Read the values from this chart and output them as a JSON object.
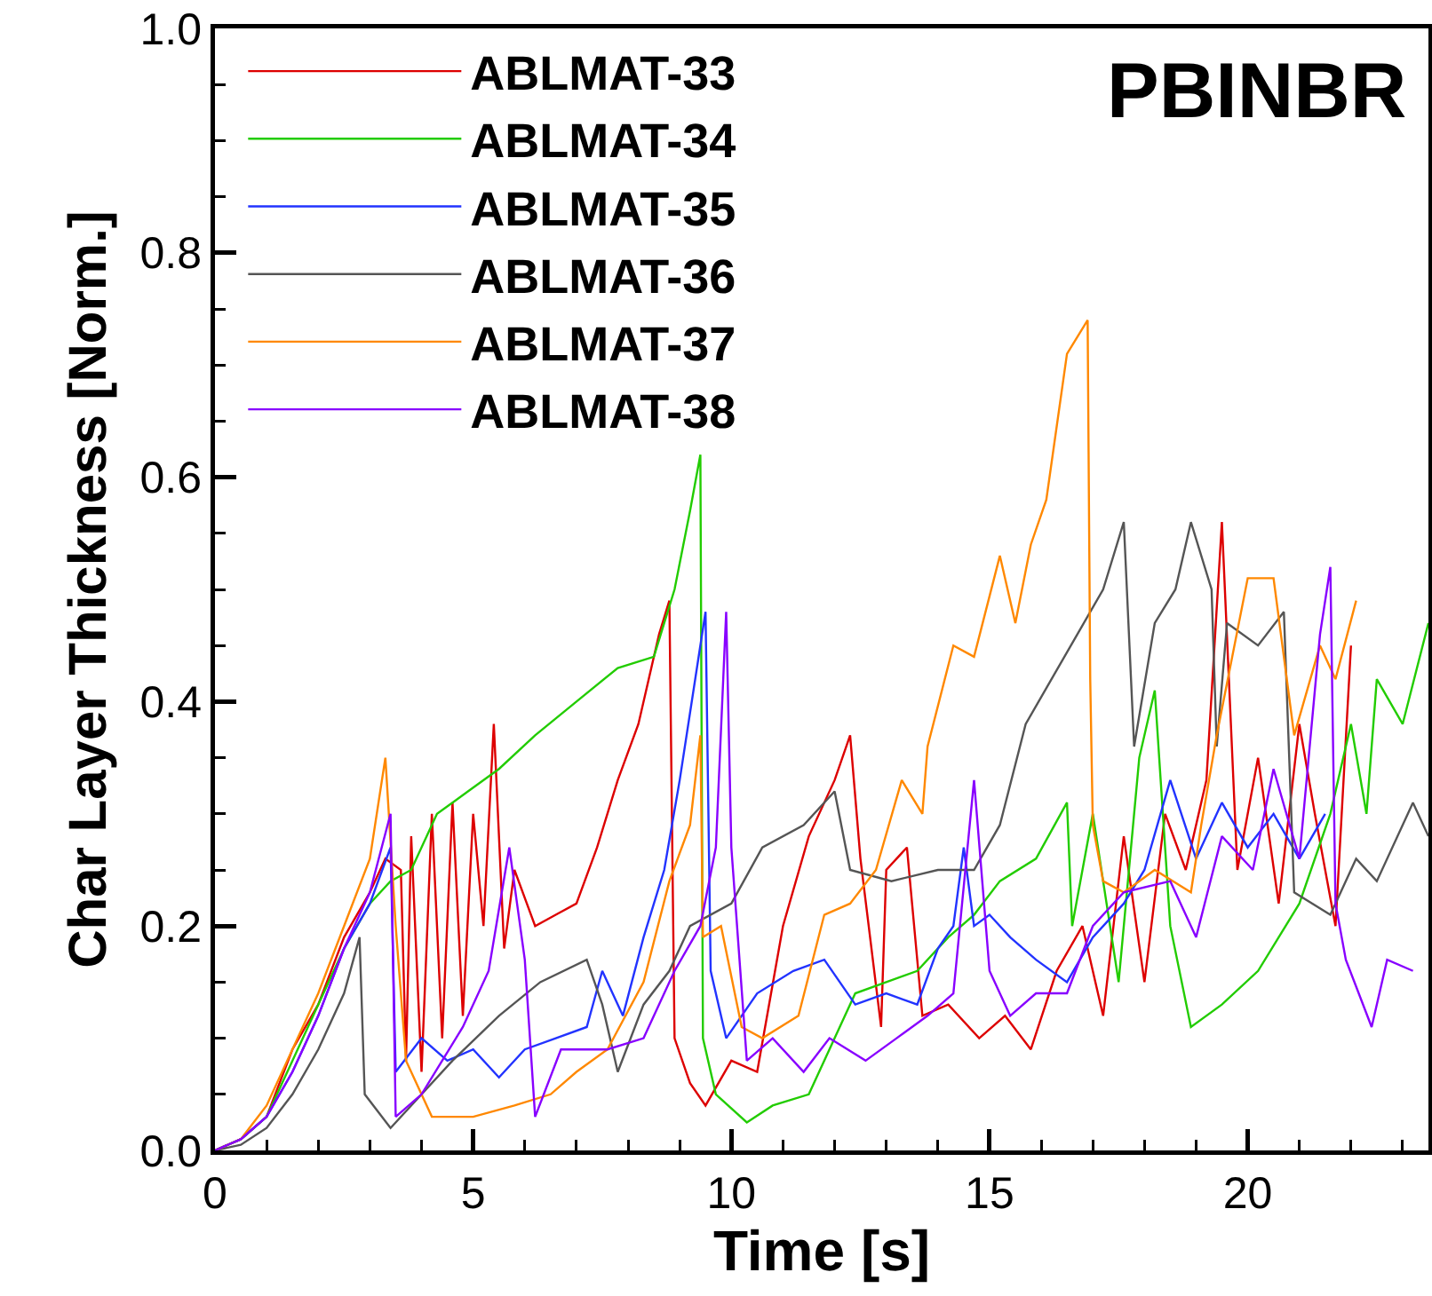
{
  "chart_data": {
    "type": "line",
    "xlabel": "Time [s]",
    "ylabel": "Char Layer Thickness [Norm.]",
    "annotations": [
      "PBINBR"
    ],
    "xlim": [
      0,
      23.5
    ],
    "xticks": [
      0,
      5,
      10,
      15,
      20
    ],
    "ylim": [
      0,
      1
    ],
    "yticks": [
      {
        "value": 0,
        "label": "0.0"
      },
      0.2,
      0.4,
      0.6,
      0.8,
      {
        "value": 1,
        "label": "1.0"
      }
    ],
    "grid": false,
    "legend": "top left",
    "series": [
      {
        "name": "ABLMAT-33",
        "color": "#dd0000",
        "x": [
          0,
          0.5,
          1,
          1.5,
          2,
          2.5,
          3,
          3.3,
          3.6,
          3.7,
          3.8,
          4.0,
          4.2,
          4.4,
          4.6,
          4.8,
          5.0,
          5.2,
          5.4,
          5.6,
          5.8,
          6.2,
          6.6,
          7.0,
          7.4,
          7.8,
          8.2,
          8.6,
          8.8,
          8.9,
          9.2,
          9.5,
          10.0,
          10.5,
          11.0,
          11.5,
          12.0,
          12.3,
          12.5,
          12.9,
          13.0,
          13.4,
          13.7,
          14.2,
          14.8,
          15.3,
          15.8,
          16.3,
          16.8,
          17.2,
          17.6,
          18.0,
          18.4,
          18.8,
          19.2,
          19.5,
          19.8,
          20.2,
          20.6,
          21.0,
          21.3,
          21.7,
          22.0
        ],
        "values": [
          0,
          0.01,
          0.03,
          0.09,
          0.13,
          0.19,
          0.23,
          0.26,
          0.25,
          0.08,
          0.28,
          0.07,
          0.3,
          0.1,
          0.31,
          0.12,
          0.3,
          0.2,
          0.38,
          0.18,
          0.25,
          0.2,
          0.21,
          0.22,
          0.27,
          0.33,
          0.38,
          0.46,
          0.49,
          0.1,
          0.06,
          0.04,
          0.08,
          0.07,
          0.2,
          0.28,
          0.33,
          0.37,
          0.26,
          0.11,
          0.25,
          0.27,
          0.12,
          0.13,
          0.1,
          0.12,
          0.09,
          0.16,
          0.2,
          0.12,
          0.28,
          0.15,
          0.3,
          0.25,
          0.33,
          0.56,
          0.25,
          0.35,
          0.22,
          0.38,
          0.3,
          0.2,
          0.45
        ]
      },
      {
        "name": "ABLMAT-34",
        "color": "#22cc00",
        "x": [
          0,
          0.5,
          1,
          1.5,
          2,
          2.5,
          3,
          3.4,
          3.8,
          4.3,
          4.9,
          5.5,
          6.2,
          7.0,
          7.8,
          8.5,
          8.9,
          9.2,
          9.4,
          9.45,
          9.7,
          10.3,
          10.8,
          11.5,
          12.0,
          12.4,
          13.0,
          13.6,
          14.2,
          14.7,
          15.2,
          15.9,
          16.5,
          16.6,
          17.0,
          17.5,
          17.9,
          18.2,
          18.5,
          18.9,
          19.5,
          20.2,
          21.0,
          21.6,
          22.0,
          22.3,
          22.5,
          23.0,
          23.5
        ],
        "values": [
          0,
          0.01,
          0.03,
          0.08,
          0.13,
          0.18,
          0.22,
          0.24,
          0.25,
          0.3,
          0.32,
          0.34,
          0.37,
          0.4,
          0.43,
          0.44,
          0.5,
          0.57,
          0.62,
          0.1,
          0.05,
          0.025,
          0.04,
          0.05,
          0.1,
          0.14,
          0.15,
          0.16,
          0.19,
          0.21,
          0.24,
          0.26,
          0.31,
          0.2,
          0.3,
          0.15,
          0.35,
          0.41,
          0.2,
          0.11,
          0.13,
          0.16,
          0.22,
          0.3,
          0.38,
          0.3,
          0.42,
          0.38,
          0.47
        ]
      },
      {
        "name": "ABLMAT-35",
        "color": "#2233ff",
        "x": [
          0,
          0.5,
          1,
          1.5,
          2,
          2.5,
          3,
          3.4,
          3.5,
          4.0,
          4.5,
          5.0,
          5.5,
          6.0,
          6.6,
          7.2,
          7.5,
          7.9,
          8.3,
          8.7,
          9.0,
          9.5,
          9.6,
          9.9,
          10.5,
          11.2,
          11.8,
          12.4,
          13.0,
          13.6,
          14.0,
          14.3,
          14.5,
          14.7,
          15.0,
          15.4,
          15.9,
          16.5,
          17.0,
          17.6,
          18.0,
          18.5,
          19.0,
          19.5,
          20.0,
          20.5,
          21.0,
          21.5
        ],
        "values": [
          0,
          0.01,
          0.03,
          0.07,
          0.12,
          0.18,
          0.22,
          0.27,
          0.07,
          0.1,
          0.08,
          0.09,
          0.065,
          0.09,
          0.1,
          0.11,
          0.16,
          0.12,
          0.19,
          0.25,
          0.33,
          0.48,
          0.16,
          0.1,
          0.14,
          0.16,
          0.17,
          0.13,
          0.14,
          0.13,
          0.18,
          0.2,
          0.27,
          0.2,
          0.21,
          0.19,
          0.17,
          0.15,
          0.19,
          0.22,
          0.25,
          0.33,
          0.26,
          0.31,
          0.27,
          0.3,
          0.26,
          0.3
        ]
      },
      {
        "name": "ABLMAT-36",
        "color": "#555555",
        "x": [
          0,
          0.5,
          1,
          1.5,
          2,
          2.5,
          2.8,
          2.9,
          3.4,
          3.8,
          4.6,
          5.5,
          6.3,
          7.2,
          7.5,
          7.8,
          8.3,
          8.8,
          9.2,
          10.0,
          10.6,
          11.4,
          12.0,
          12.3,
          13.1,
          14.0,
          14.7,
          15.2,
          15.7,
          16.2,
          16.7,
          17.2,
          17.6,
          17.8,
          18.2,
          18.6,
          18.9,
          19.3,
          19.4,
          19.6,
          20.2,
          20.7,
          20.9,
          21.6,
          22.1,
          22.5,
          23.2,
          23.5
        ],
        "values": [
          0,
          0.005,
          0.02,
          0.05,
          0.09,
          0.14,
          0.19,
          0.05,
          0.02,
          0.04,
          0.08,
          0.12,
          0.15,
          0.17,
          0.13,
          0.07,
          0.13,
          0.16,
          0.2,
          0.22,
          0.27,
          0.29,
          0.32,
          0.25,
          0.24,
          0.25,
          0.25,
          0.29,
          0.38,
          0.42,
          0.46,
          0.5,
          0.56,
          0.36,
          0.47,
          0.5,
          0.56,
          0.5,
          0.36,
          0.47,
          0.45,
          0.48,
          0.23,
          0.21,
          0.26,
          0.24,
          0.31,
          0.28
        ]
      },
      {
        "name": "ABLMAT-37",
        "color": "#ff8800",
        "x": [
          0,
          0.5,
          1,
          1.5,
          2,
          2.5,
          3,
          3.3,
          3.5,
          3.7,
          4.2,
          5.0,
          5.8,
          6.5,
          7.0,
          7.6,
          8.3,
          8.8,
          9.2,
          9.4,
          9.45,
          9.8,
          10.2,
          10.6,
          11.3,
          11.8,
          12.3,
          12.8,
          13.3,
          13.7,
          13.8,
          14.3,
          14.7,
          15.2,
          15.5,
          15.8,
          16.1,
          16.5,
          16.9,
          16.95,
          17.0,
          17.2,
          17.6,
          18.2,
          18.9,
          19.1,
          19.4,
          20.0,
          20.5,
          20.9,
          21.4,
          21.7,
          22.1
        ],
        "values": [
          0,
          0.01,
          0.04,
          0.09,
          0.14,
          0.2,
          0.26,
          0.35,
          0.2,
          0.08,
          0.03,
          0.03,
          0.04,
          0.05,
          0.07,
          0.09,
          0.15,
          0.24,
          0.29,
          0.37,
          0.19,
          0.2,
          0.11,
          0.1,
          0.12,
          0.21,
          0.22,
          0.25,
          0.33,
          0.3,
          0.36,
          0.45,
          0.44,
          0.53,
          0.47,
          0.54,
          0.58,
          0.71,
          0.74,
          0.42,
          0.29,
          0.24,
          0.23,
          0.25,
          0.23,
          0.29,
          0.37,
          0.51,
          0.51,
          0.37,
          0.45,
          0.42,
          0.49
        ]
      },
      {
        "name": "ABLMAT-38",
        "color": "#8800ff",
        "x": [
          0,
          0.5,
          1,
          1.5,
          2,
          2.5,
          3,
          3.4,
          3.5,
          4.0,
          4.4,
          4.8,
          5.3,
          5.7,
          6.0,
          6.2,
          6.7,
          7.6,
          8.3,
          8.9,
          9.4,
          9.7,
          9.9,
          10.0,
          10.3,
          10.8,
          11.4,
          11.9,
          12.6,
          13.2,
          13.8,
          14.3,
          14.7,
          15.0,
          15.4,
          15.9,
          16.5,
          17.0,
          17.6,
          18.5,
          19.0,
          19.5,
          20.1,
          20.5,
          21.0,
          21.4,
          21.6,
          21.7,
          21.9,
          22.4,
          22.7,
          23.2
        ],
        "values": [
          0,
          0.01,
          0.03,
          0.07,
          0.12,
          0.18,
          0.23,
          0.3,
          0.03,
          0.05,
          0.08,
          0.11,
          0.16,
          0.27,
          0.17,
          0.03,
          0.09,
          0.09,
          0.1,
          0.16,
          0.2,
          0.27,
          0.48,
          0.27,
          0.08,
          0.1,
          0.07,
          0.1,
          0.08,
          0.1,
          0.12,
          0.14,
          0.33,
          0.16,
          0.12,
          0.14,
          0.14,
          0.2,
          0.23,
          0.24,
          0.19,
          0.28,
          0.25,
          0.34,
          0.26,
          0.46,
          0.52,
          0.22,
          0.17,
          0.11,
          0.17,
          0.16
        ]
      }
    ]
  }
}
